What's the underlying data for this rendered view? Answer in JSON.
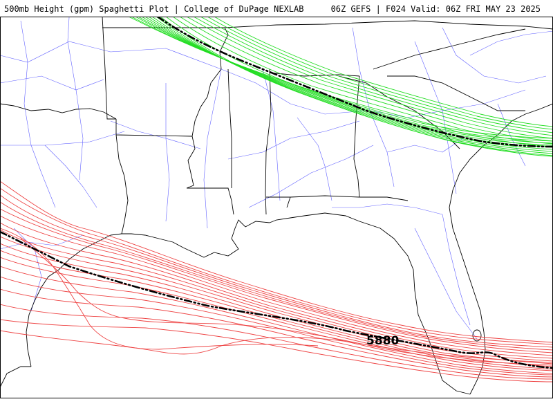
{
  "header": {
    "title_left": "500mb Height (gpm) Spaghetti Plot | College of DuPage NEXLAB",
    "title_right": "06Z GEFS | F024 Valid: 06Z FRI MAY 23 2025"
  },
  "map": {
    "contour_label": "5880",
    "colors": {
      "northern_ensemble": "#22dd22",
      "southern_ensemble": "#ee4444",
      "mean_contour": "#000000",
      "state_borders": "#000000",
      "roads": "#4444ff"
    }
  }
}
